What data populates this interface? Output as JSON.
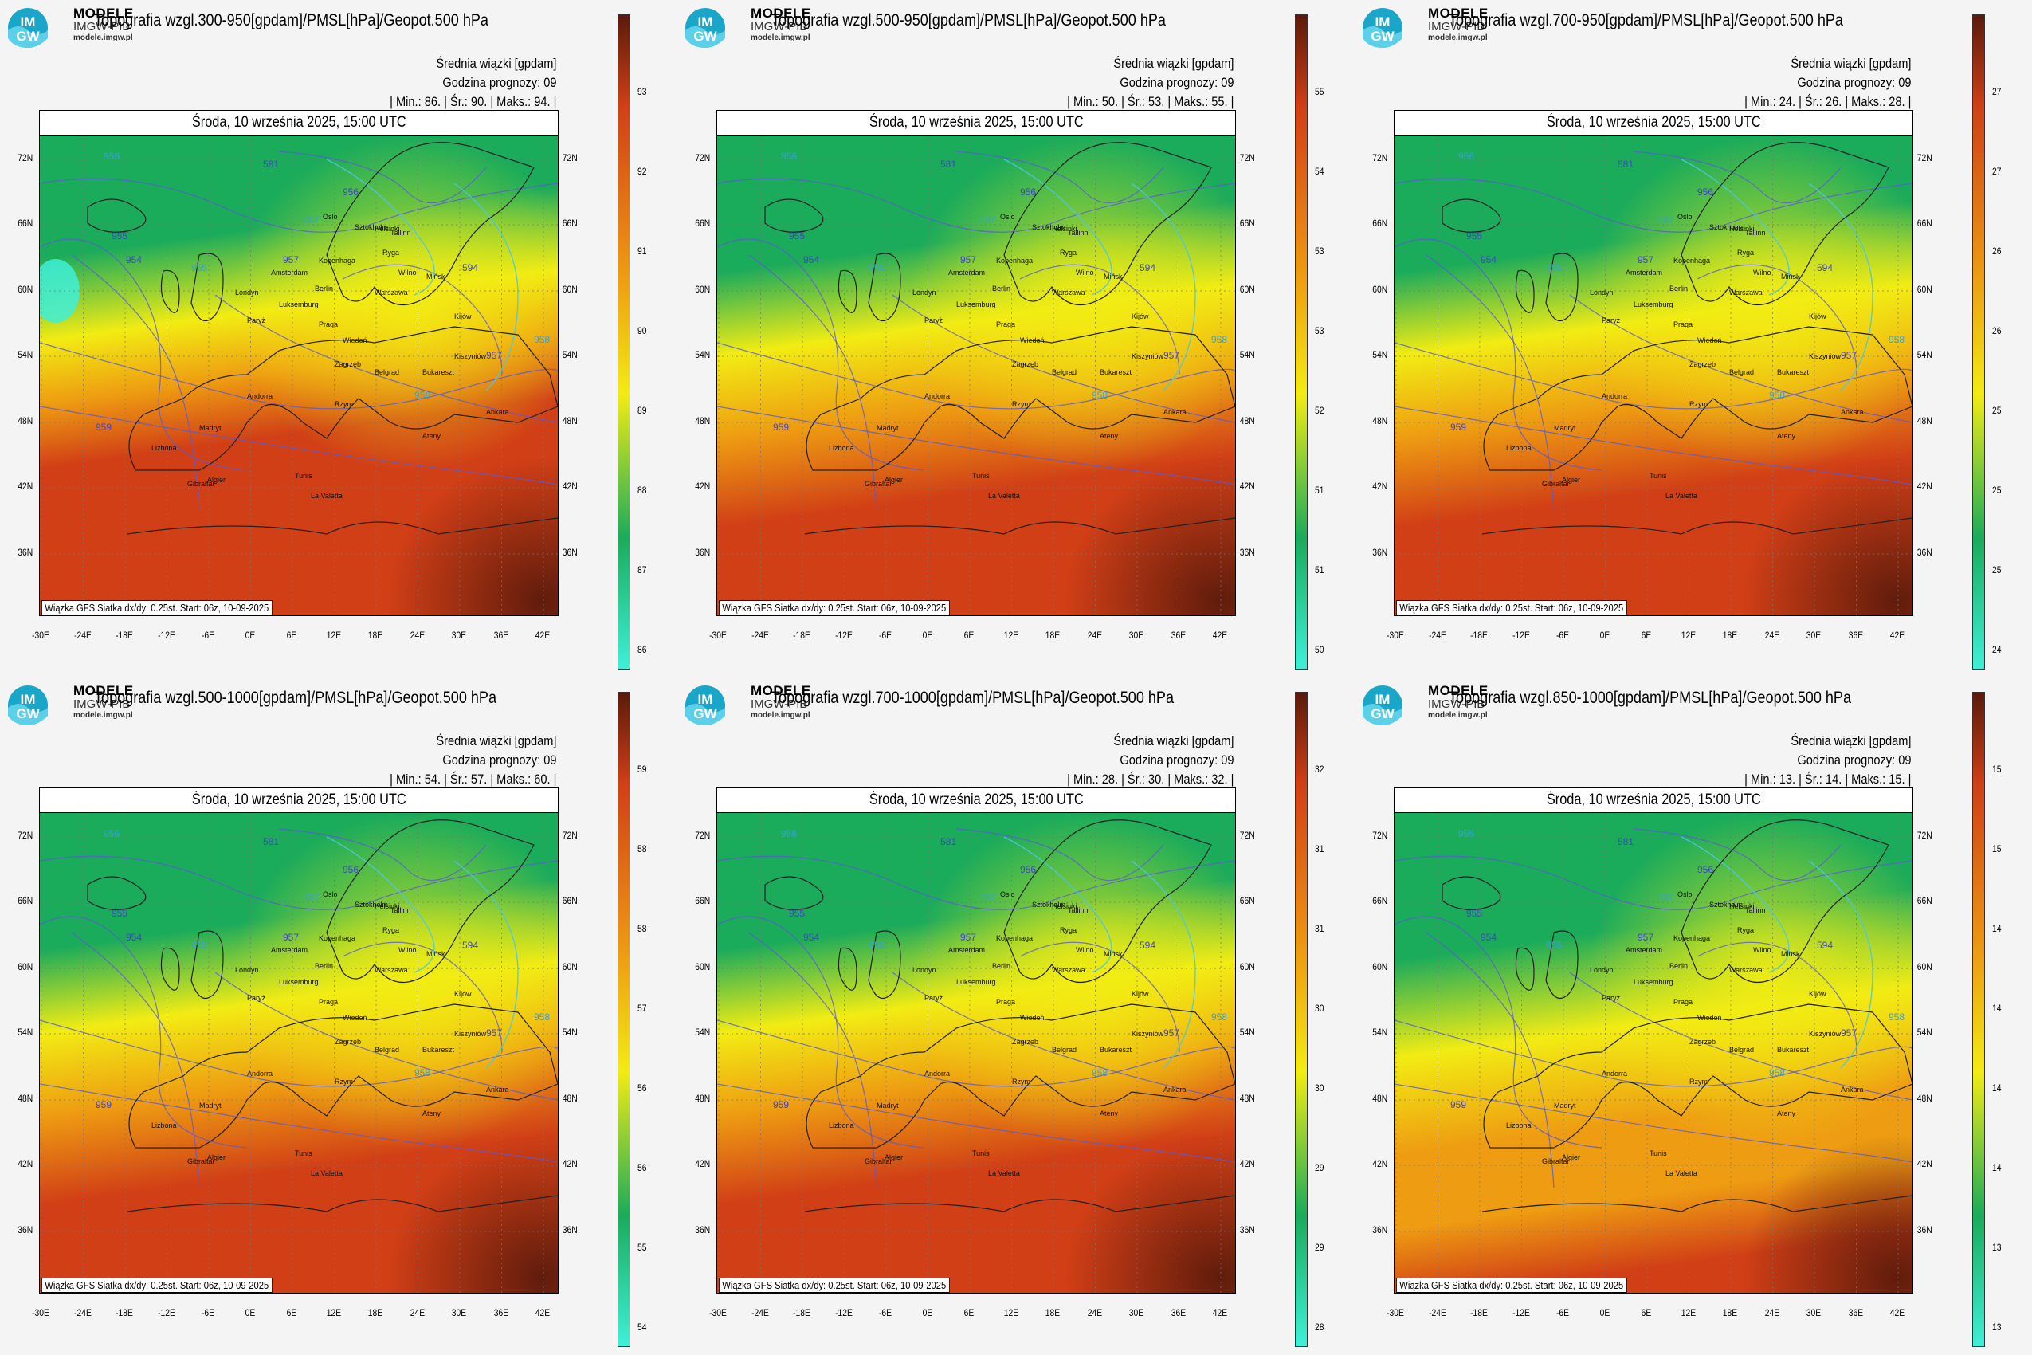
{
  "brand": {
    "line1": "MODELE",
    "line2": "IMGW-PIB",
    "line3": "modele.imgw.pl",
    "logo_text_top": "IM",
    "logo_text_bottom": "GW"
  },
  "common": {
    "date": "Środa, 10 września 2025, 15:00 UTC",
    "line1": "Średnia wiązki [gpdam]",
    "line2": "Godzina prognozy: 09",
    "footnote": "Wiązka GFS Siatka dx/dy: 0.25st. Start: 06z, 10-09-2025",
    "lat_labels": [
      "72N",
      "66N",
      "60N",
      "54N",
      "48N",
      "42N",
      "36N"
    ],
    "lon_labels": [
      "-30E",
      "-24E",
      "-18E",
      "-12E",
      "-6E",
      "0E",
      "6E",
      "12E",
      "18E",
      "24E",
      "30E",
      "36E",
      "42E"
    ]
  },
  "colors": {
    "low": "#3ff0d8",
    "green": "#1aab5b",
    "yellow": "#f2ec13",
    "orange": "#ee9c12",
    "red": "#d13f16",
    "dark": "#5a1a0c"
  },
  "panels": [
    {
      "title": "Topografia wzgl.300-950[gpdam]/PMSL[hPa]/Geopot.500 hPa",
      "stats": "| Min.:    86. | Śr.:    90. | Maks.:    94. |",
      "cbar_ticks": [
        "93",
        "92",
        "91",
        "90",
        "89",
        "88",
        "87",
        "86"
      ]
    },
    {
      "title": "Topografia wzgl.500-950[gpdam]/PMSL[hPa]/Geopot.500 hPa",
      "stats": "| Min.:    50. | Śr.:    53. | Maks.:    55. |",
      "cbar_ticks": [
        "55",
        "54",
        "53",
        "53",
        "52",
        "51",
        "51",
        "50"
      ]
    },
    {
      "title": "Topografia wzgl.700-950[gpdam]/PMSL[hPa]/Geopot.500 hPa",
      "stats": "| Min.:    24. | Śr.:    26. | Maks.:    28. |",
      "cbar_ticks": [
        "27",
        "27",
        "26",
        "26",
        "25",
        "25",
        "25",
        "24"
      ]
    },
    {
      "title": "Topografia wzgl.500-1000[gpdam]/PMSL[hPa]/Geopot.500 hPa",
      "stats": "| Min.:    54. | Śr.:    57. | Maks.:    60. |",
      "cbar_ticks": [
        "59",
        "58",
        "58",
        "57",
        "56",
        "56",
        "55",
        "54"
      ]
    },
    {
      "title": "Topografia wzgl.700-1000[gpdam]/PMSL[hPa]/Geopot.500 hPa",
      "stats": "| Min.:    28. | Śr.:    30. | Maks.:    32. |",
      "cbar_ticks": [
        "32",
        "31",
        "31",
        "30",
        "30",
        "29",
        "29",
        "28"
      ]
    },
    {
      "title": "Topografia wzgl.850-1000[gpdam]/PMSL[hPa]/Geopot.500 hPa",
      "stats": "| Min.:    13. | Śr.:    14. | Maks.:    15. |",
      "cbar_ticks": [
        "15",
        "15",
        "14",
        "14",
        "14",
        "14",
        "13",
        "13"
      ]
    }
  ],
  "contour_labels": [
    "956",
    "955",
    "954",
    "955",
    "956",
    "957",
    "958",
    "959",
    "581",
    "587",
    "594",
    "957",
    "958"
  ],
  "cities": [
    "Oslo",
    "Helsinki",
    "Sztokholm",
    "Tallinn",
    "Ryga",
    "Kopenhaga",
    "Wilno",
    "Mińsk",
    "Amsterdam",
    "Berlin",
    "Warszawa",
    "Londyn",
    "Luksemburg",
    "Paryż",
    "Praga",
    "Wiedeń",
    "Kijów",
    "Bukareszt",
    "Belgrad",
    "Rzym",
    "Madryt",
    "Lizbona",
    "Algier",
    "Tunis",
    "Ateny",
    "Ankara",
    "Kiszyniów",
    "Zagrzeb",
    "Andorra",
    "Gibraltar",
    "La Valetta"
  ]
}
